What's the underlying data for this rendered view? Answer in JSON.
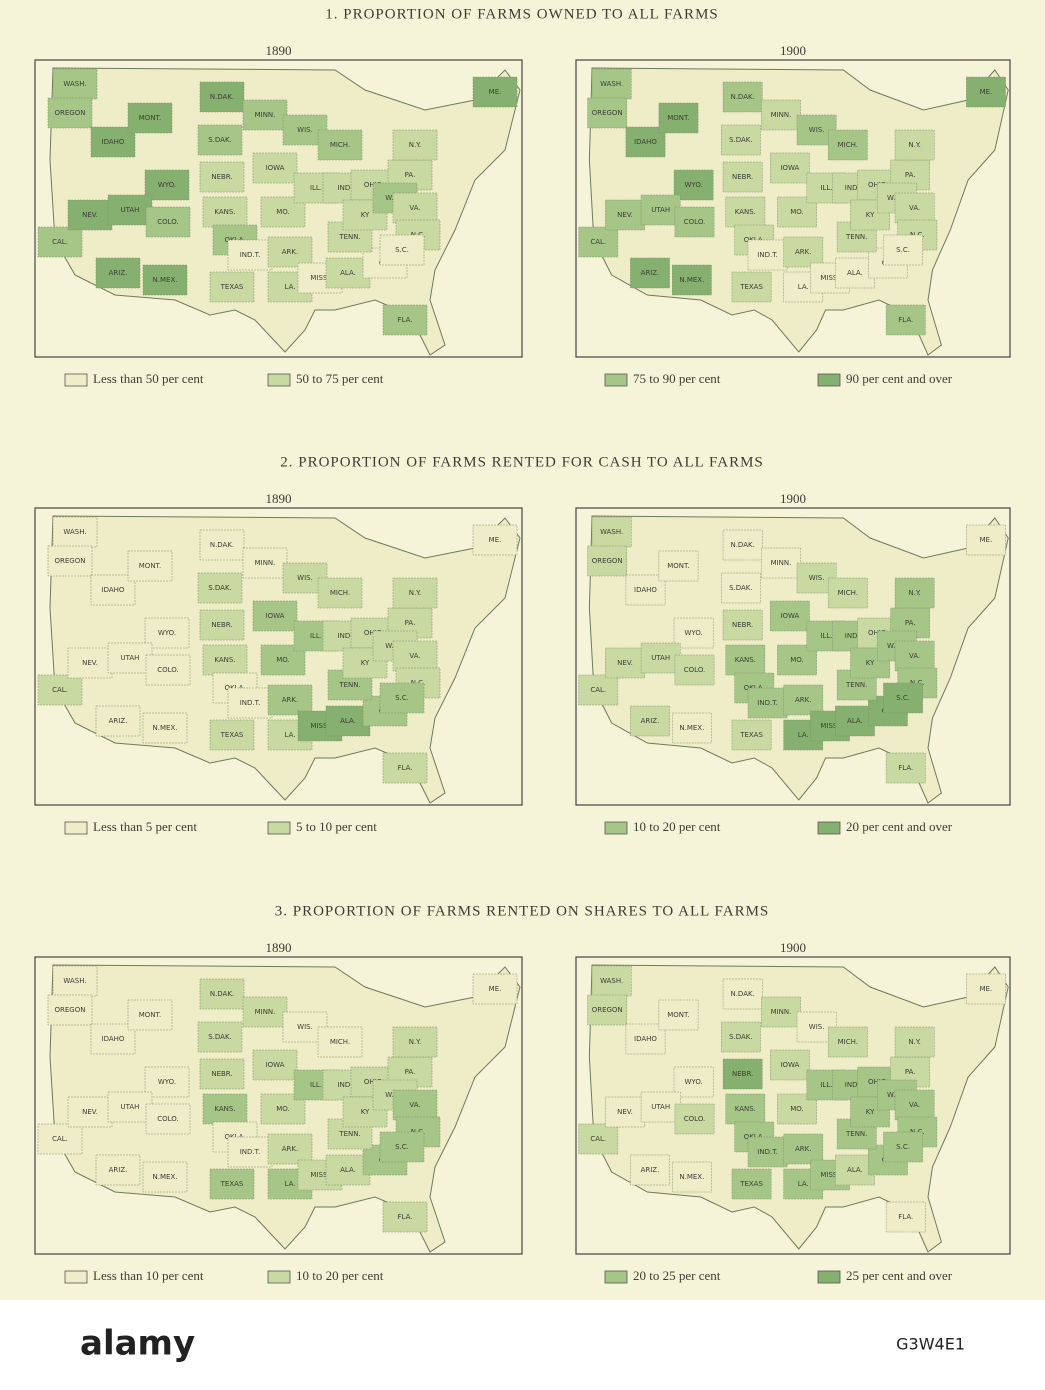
{
  "states": [
    "WASH.",
    "OREGON",
    "IDAHO",
    "MONT.",
    "WYO.",
    "N.DAK.",
    "S.DAK.",
    "MINN.",
    "NEBR.",
    "IOWA",
    "WIS.",
    "MICH.",
    "CAL.",
    "NEV.",
    "UTAH",
    "COLO.",
    "KANS.",
    "MO.",
    "ILL.",
    "IND.",
    "OHIO",
    "PA.",
    "N.Y.",
    "ME.",
    "ARIZ.",
    "N.MEX.",
    "OKLA.",
    "IND.T.",
    "TEXAS",
    "ARK.",
    "LA.",
    "MISS.",
    "ALA.",
    "GA.",
    "FLA.",
    "TENN.",
    "KY",
    "W.VA.",
    "VA.",
    "N.C.",
    "S.C."
  ],
  "legend_colors": [
    "#efedc8",
    "#c8daa2",
    "#a6c688",
    "#86b06f"
  ],
  "sections": [
    {
      "title": "1. PROPORTION OF FARMS OWNED TO ALL FARMS",
      "legend": [
        "Less than 50 per cent",
        "50 to 75 per cent",
        "75 to 90 per cent",
        "90 per cent and over"
      ],
      "maps": [
        {
          "year": "1890",
          "classes": [
            2,
            2,
            3,
            3,
            3,
            3,
            2,
            2,
            1,
            1,
            2,
            2,
            2,
            3,
            3,
            2,
            1,
            1,
            1,
            1,
            1,
            1,
            1,
            3,
            3,
            3,
            2,
            0,
            1,
            1,
            1,
            0,
            1,
            0,
            2,
            1,
            1,
            2,
            1,
            1,
            0
          ]
        },
        {
          "year": "1900",
          "classes": [
            2,
            2,
            3,
            3,
            3,
            2,
            1,
            1,
            1,
            1,
            2,
            2,
            2,
            2,
            2,
            2,
            1,
            1,
            1,
            1,
            1,
            1,
            1,
            3,
            3,
            3,
            1,
            0,
            1,
            1,
            0,
            0,
            0,
            0,
            2,
            1,
            1,
            1,
            1,
            1,
            0
          ]
        }
      ]
    },
    {
      "title": "2. PROPORTION OF FARMS RENTED FOR CASH TO ALL FARMS",
      "legend": [
        "Less than 5 per cent",
        "5 to 10 per cent",
        "10 to 20 per cent",
        "20 per cent and over"
      ],
      "maps": [
        {
          "year": "1890",
          "classes": [
            0,
            0,
            0,
            0,
            0,
            0,
            1,
            0,
            1,
            2,
            1,
            1,
            1,
            0,
            0,
            0,
            1,
            2,
            2,
            1,
            1,
            1,
            1,
            0,
            0,
            0,
            0,
            0,
            1,
            2,
            1,
            3,
            3,
            2,
            1,
            2,
            1,
            1,
            1,
            1,
            2
          ]
        },
        {
          "year": "1900",
          "classes": [
            1,
            1,
            0,
            0,
            0,
            0,
            0,
            0,
            1,
            2,
            1,
            1,
            1,
            1,
            1,
            1,
            2,
            2,
            2,
            2,
            1,
            2,
            2,
            0,
            1,
            0,
            2,
            2,
            1,
            2,
            3,
            3,
            3,
            3,
            1,
            2,
            2,
            2,
            2,
            2,
            3
          ]
        }
      ]
    },
    {
      "title": "3. PROPORTION OF FARMS RENTED ON SHARES TO ALL FARMS",
      "legend": [
        "Less than 10 per cent",
        "10 to 20 per cent",
        "20 to 25 per cent",
        "25 per cent and over"
      ],
      "maps": [
        {
          "year": "1890",
          "classes": [
            0,
            0,
            0,
            0,
            0,
            1,
            1,
            1,
            1,
            1,
            0,
            0,
            0,
            0,
            0,
            0,
            2,
            1,
            2,
            1,
            1,
            1,
            1,
            0,
            0,
            0,
            0,
            0,
            2,
            1,
            2,
            1,
            1,
            2,
            1,
            1,
            1,
            1,
            2,
            2,
            2
          ]
        },
        {
          "year": "1900",
          "classes": [
            1,
            1,
            0,
            0,
            0,
            0,
            1,
            1,
            3,
            1,
            0,
            1,
            1,
            0,
            0,
            1,
            2,
            1,
            2,
            2,
            2,
            1,
            1,
            0,
            0,
            0,
            2,
            2,
            2,
            2,
            2,
            2,
            1,
            2,
            0,
            2,
            2,
            2,
            2,
            2,
            2
          ]
        }
      ]
    }
  ],
  "footer": {
    "logo": "alamy",
    "image_id": "G3W4E1"
  }
}
